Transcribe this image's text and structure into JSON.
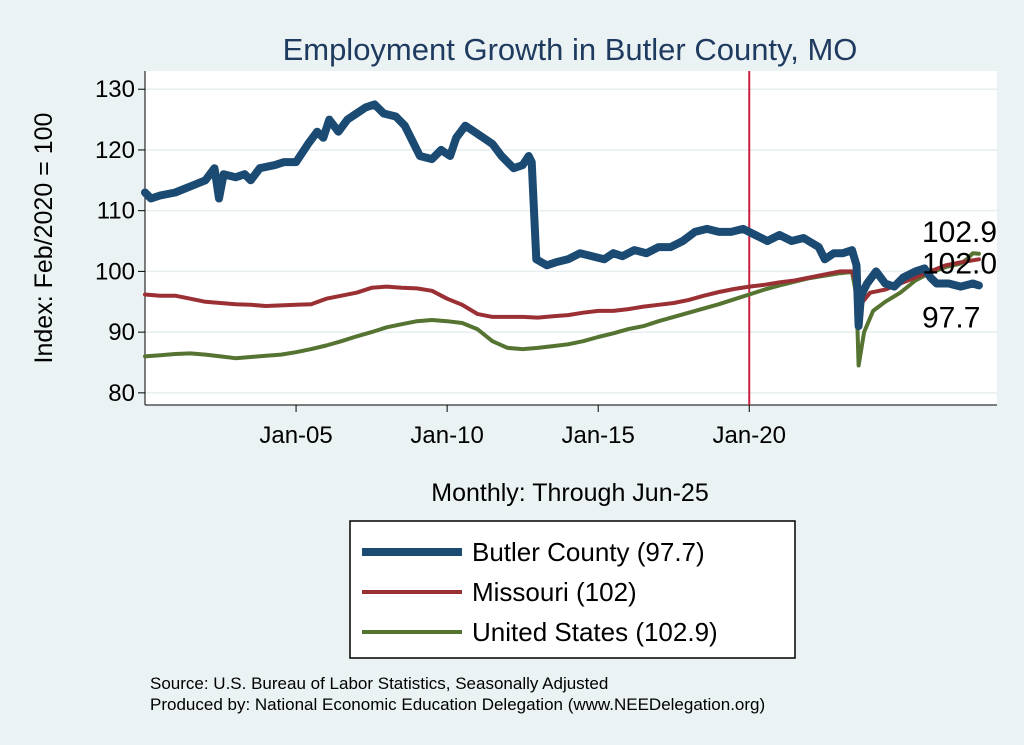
{
  "chart_data": {
    "type": "line",
    "title": "Employment Growth in Butler  County, MO",
    "xlabel": "Monthly: Through Jun-25",
    "ylabel": "Index: Feb/2020 = 100",
    "ylim": [
      78,
      133
    ],
    "xlim": [
      2000.0,
      2028.2
    ],
    "y_ticks": [
      80,
      90,
      100,
      110,
      120,
      130
    ],
    "x_ticks": [
      {
        "value": 2005.0,
        "label": "Jan-05"
      },
      {
        "value": 2010.0,
        "label": "Jan-10"
      },
      {
        "value": 2015.0,
        "label": "Jan-15"
      },
      {
        "value": 2020.0,
        "label": "Jan-20"
      }
    ],
    "vline": {
      "x": 2020.0,
      "color": "#c8203f"
    },
    "grid": true,
    "legend_position": "bottom",
    "series": [
      {
        "name": "Butler  County",
        "legend_label": "Butler  County (97.7)",
        "end_label": "97.7",
        "color": "#1b4a72",
        "width": 8,
        "points": [
          [
            2000.0,
            113
          ],
          [
            2000.2,
            112
          ],
          [
            2000.5,
            112.5
          ],
          [
            2001.0,
            113
          ],
          [
            2001.5,
            114
          ],
          [
            2002.0,
            115
          ],
          [
            2002.3,
            117
          ],
          [
            2002.45,
            112
          ],
          [
            2002.6,
            116
          ],
          [
            2003.0,
            115.5
          ],
          [
            2003.3,
            116
          ],
          [
            2003.5,
            115
          ],
          [
            2003.8,
            117
          ],
          [
            2004.3,
            117.5
          ],
          [
            2004.6,
            118
          ],
          [
            2005.0,
            118
          ],
          [
            2005.4,
            121
          ],
          [
            2005.7,
            123
          ],
          [
            2005.9,
            122
          ],
          [
            2006.1,
            125
          ],
          [
            2006.4,
            123
          ],
          [
            2006.7,
            125
          ],
          [
            2007.0,
            126
          ],
          [
            2007.3,
            127
          ],
          [
            2007.6,
            127.5
          ],
          [
            2007.9,
            126
          ],
          [
            2008.3,
            125.5
          ],
          [
            2008.6,
            124
          ],
          [
            2008.9,
            121
          ],
          [
            2009.1,
            119
          ],
          [
            2009.5,
            118.5
          ],
          [
            2009.8,
            120
          ],
          [
            2010.1,
            119
          ],
          [
            2010.3,
            122
          ],
          [
            2010.6,
            124
          ],
          [
            2010.9,
            123
          ],
          [
            2011.2,
            122
          ],
          [
            2011.5,
            121
          ],
          [
            2011.8,
            119
          ],
          [
            2012.2,
            117
          ],
          [
            2012.5,
            117.5
          ],
          [
            2012.7,
            119
          ],
          [
            2012.8,
            118
          ],
          [
            2012.95,
            102
          ],
          [
            2013.3,
            101
          ],
          [
            2013.6,
            101.5
          ],
          [
            2014.0,
            102
          ],
          [
            2014.4,
            103
          ],
          [
            2014.8,
            102.5
          ],
          [
            2015.2,
            102
          ],
          [
            2015.5,
            103
          ],
          [
            2015.8,
            102.5
          ],
          [
            2016.2,
            103.5
          ],
          [
            2016.6,
            103
          ],
          [
            2017.0,
            104
          ],
          [
            2017.4,
            104
          ],
          [
            2017.8,
            105
          ],
          [
            2018.2,
            106.5
          ],
          [
            2018.6,
            107
          ],
          [
            2019.0,
            106.5
          ],
          [
            2019.4,
            106.5
          ],
          [
            2019.8,
            107
          ],
          [
            2020.2,
            106
          ],
          [
            2020.6,
            105
          ],
          [
            2021.0,
            106
          ],
          [
            2021.4,
            105
          ],
          [
            2021.8,
            105.5
          ],
          [
            2022.3,
            104
          ],
          [
            2022.5,
            102
          ],
          [
            2022.8,
            103
          ],
          [
            2023.1,
            103
          ],
          [
            2023.4,
            103.5
          ],
          [
            2023.55,
            101
          ],
          [
            2023.62,
            91
          ],
          [
            2023.7,
            96
          ],
          [
            2023.9,
            98
          ],
          [
            2024.2,
            100
          ],
          [
            2024.5,
            98
          ],
          [
            2024.8,
            97.5
          ],
          [
            2025.1,
            99
          ],
          [
            2025.5,
            100
          ],
          [
            2025.8,
            100.5
          ],
          [
            2026.0,
            99
          ],
          [
            2026.2,
            98
          ],
          [
            2026.6,
            98
          ],
          [
            2027.0,
            97.5
          ],
          [
            2027.4,
            98
          ],
          [
            2027.6,
            97.7
          ]
        ]
      },
      {
        "name": "Missouri",
        "legend_label": "Missouri (102)",
        "end_label": "102.0",
        "color": "#9b3034",
        "width": 4,
        "points": [
          [
            2000.0,
            96.2
          ],
          [
            2000.5,
            96
          ],
          [
            2001.0,
            96
          ],
          [
            2001.5,
            95.5
          ],
          [
            2002.0,
            95
          ],
          [
            2002.5,
            94.8
          ],
          [
            2003.0,
            94.6
          ],
          [
            2003.5,
            94.5
          ],
          [
            2004.0,
            94.3
          ],
          [
            2004.5,
            94.4
          ],
          [
            2005.0,
            94.5
          ],
          [
            2005.5,
            94.6
          ],
          [
            2006.0,
            95.5
          ],
          [
            2006.5,
            96
          ],
          [
            2007.0,
            96.5
          ],
          [
            2007.5,
            97.3
          ],
          [
            2008.0,
            97.5
          ],
          [
            2008.5,
            97.3
          ],
          [
            2009.0,
            97.2
          ],
          [
            2009.5,
            96.8
          ],
          [
            2010.0,
            95.5
          ],
          [
            2010.5,
            94.5
          ],
          [
            2011.0,
            93
          ],
          [
            2011.5,
            92.5
          ],
          [
            2012.0,
            92.5
          ],
          [
            2012.5,
            92.5
          ],
          [
            2013.0,
            92.4
          ],
          [
            2013.5,
            92.6
          ],
          [
            2014.0,
            92.8
          ],
          [
            2014.5,
            93.2
          ],
          [
            2015.0,
            93.5
          ],
          [
            2015.5,
            93.5
          ],
          [
            2016.0,
            93.8
          ],
          [
            2016.5,
            94.2
          ],
          [
            2017.0,
            94.5
          ],
          [
            2017.5,
            94.8
          ],
          [
            2018.0,
            95.3
          ],
          [
            2018.5,
            96
          ],
          [
            2019.0,
            96.6
          ],
          [
            2019.5,
            97.1
          ],
          [
            2020.0,
            97.5
          ],
          [
            2020.5,
            97.8
          ],
          [
            2021.0,
            98.2
          ],
          [
            2021.5,
            98.5
          ],
          [
            2022.0,
            99
          ],
          [
            2022.5,
            99.5
          ],
          [
            2023.0,
            100
          ],
          [
            2023.4,
            100
          ],
          [
            2023.55,
            98
          ],
          [
            2023.62,
            91
          ],
          [
            2023.75,
            95
          ],
          [
            2024.0,
            96.5
          ],
          [
            2024.5,
            97
          ],
          [
            2025.0,
            98
          ],
          [
            2025.5,
            99
          ],
          [
            2026.0,
            100
          ],
          [
            2026.5,
            101
          ],
          [
            2027.0,
            101.5
          ],
          [
            2027.6,
            102
          ]
        ]
      },
      {
        "name": "United States",
        "legend_label": "United States (102.9)",
        "end_label": "102.9",
        "color": "#567431",
        "width": 4,
        "points": [
          [
            2000.0,
            86
          ],
          [
            2000.5,
            86.2
          ],
          [
            2001.0,
            86.4
          ],
          [
            2001.5,
            86.5
          ],
          [
            2002.0,
            86.3
          ],
          [
            2002.5,
            86
          ],
          [
            2003.0,
            85.7
          ],
          [
            2003.5,
            85.9
          ],
          [
            2004.0,
            86.1
          ],
          [
            2004.5,
            86.3
          ],
          [
            2005.0,
            86.7
          ],
          [
            2005.5,
            87.2
          ],
          [
            2006.0,
            87.8
          ],
          [
            2006.5,
            88.5
          ],
          [
            2007.0,
            89.3
          ],
          [
            2007.5,
            90
          ],
          [
            2008.0,
            90.8
          ],
          [
            2008.5,
            91.3
          ],
          [
            2009.0,
            91.8
          ],
          [
            2009.5,
            92
          ],
          [
            2010.0,
            91.8
          ],
          [
            2010.5,
            91.5
          ],
          [
            2011.0,
            90.5
          ],
          [
            2011.5,
            88.5
          ],
          [
            2012.0,
            87.4
          ],
          [
            2012.5,
            87.2
          ],
          [
            2013.0,
            87.4
          ],
          [
            2013.5,
            87.7
          ],
          [
            2014.0,
            88
          ],
          [
            2014.5,
            88.5
          ],
          [
            2015.0,
            89.2
          ],
          [
            2015.5,
            89.8
          ],
          [
            2016.0,
            90.5
          ],
          [
            2016.5,
            91
          ],
          [
            2017.0,
            91.8
          ],
          [
            2017.5,
            92.5
          ],
          [
            2018.0,
            93.2
          ],
          [
            2018.5,
            93.9
          ],
          [
            2019.0,
            94.6
          ],
          [
            2019.5,
            95.4
          ],
          [
            2020.0,
            96.2
          ],
          [
            2020.5,
            97
          ],
          [
            2021.0,
            97.7
          ],
          [
            2021.5,
            98.3
          ],
          [
            2022.0,
            98.9
          ],
          [
            2022.5,
            99.3
          ],
          [
            2023.0,
            99.7
          ],
          [
            2023.4,
            99.9
          ],
          [
            2023.55,
            96
          ],
          [
            2023.62,
            84.5
          ],
          [
            2023.8,
            90
          ],
          [
            2024.1,
            93.5
          ],
          [
            2024.5,
            95
          ],
          [
            2025.0,
            96.5
          ],
          [
            2025.5,
            98.5
          ],
          [
            2026.0,
            99.8
          ],
          [
            2026.5,
            100.7
          ],
          [
            2027.0,
            101.3
          ],
          [
            2027.2,
            102
          ],
          [
            2027.4,
            103
          ],
          [
            2027.6,
            102.9
          ]
        ]
      }
    ]
  },
  "footer": {
    "source": "Source: U.S. Bureau of Labor Statistics, Seasonally Adjusted",
    "produced_by": "Produced by: National Economic Education Delegation (www.NEEDelegation.org)"
  }
}
